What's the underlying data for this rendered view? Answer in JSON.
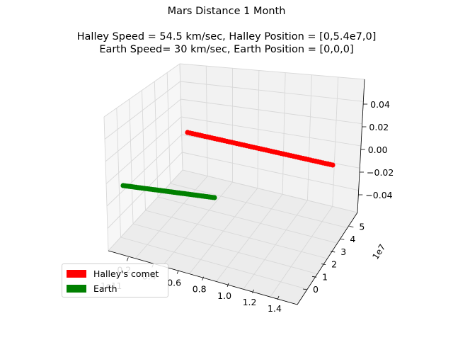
{
  "chart_data": {
    "type": "scatter3d",
    "title": "Mars Distance 1 Month",
    "subtitle_lines": [
      "Halley Speed = 54.5 km/sec, Halley Position = [0,5.4e7,0]",
      "Earth Speed= 30 km/sec, Earth Position = [0,0,0]"
    ],
    "x_axis": {
      "ticks": [
        "0.2",
        "0.4",
        "0.6",
        "0.8",
        "1.0",
        "1.2",
        "1.4"
      ],
      "offset_label": "1e11"
    },
    "y_axis": {
      "ticks": [
        "0",
        "1",
        "2",
        "3",
        "4",
        "5"
      ],
      "offset_label": "1e7"
    },
    "z_axis": {
      "ticks": [
        "0.04",
        "0.02",
        "0.00",
        "−0.02",
        "−0.04"
      ]
    },
    "series": [
      {
        "name": "Halley's comet",
        "color": "#ff0000",
        "x_range": [
          0.0,
          1.4
        ],
        "y_value": 5.4,
        "z_value": 0.0,
        "points": 60
      },
      {
        "name": "Earth",
        "color": "#008000",
        "x_range": [
          0.0,
          0.78
        ],
        "y_value": 0.0,
        "z_value": 0.0,
        "points": 50
      }
    ],
    "grid": true,
    "legend": "lower-left"
  }
}
